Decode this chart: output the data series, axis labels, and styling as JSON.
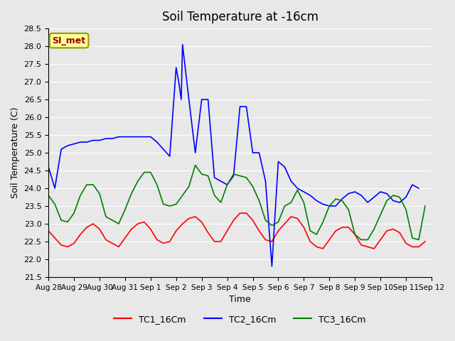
{
  "title": "Soil Temperature at -16cm",
  "xlabel": "Time",
  "ylabel": "Soil Temperature (C)",
  "ylim": [
    21.5,
    28.5
  ],
  "background_color": "#e8e8e8",
  "annotation_text": "SI_met",
  "annotation_bg": "#ffff99",
  "annotation_border": "#999900",
  "annotation_text_color": "#990000",
  "xtick_labels": [
    "Aug 28",
    "Aug 29",
    "Aug 30",
    "Aug 31",
    "Sep 1",
    "Sep 2",
    "Sep 3",
    "Sep 4",
    "Sep 5",
    "Sep 6",
    "Sep 7",
    "Sep 8",
    "Sep 9",
    "Sep 10",
    "Sep 11",
    "Sep 12"
  ],
  "xtick_positions": [
    0,
    1,
    2,
    3,
    4,
    5,
    6,
    7,
    8,
    9,
    10,
    11,
    12,
    13,
    14,
    15
  ],
  "ytick_values": [
    21.5,
    22.0,
    22.5,
    23.0,
    23.5,
    24.0,
    24.5,
    25.0,
    25.5,
    26.0,
    26.5,
    27.0,
    27.5,
    28.0,
    28.5
  ],
  "series": {
    "TC1_16Cm": {
      "color": "red",
      "x": [
        0,
        0.25,
        0.5,
        0.75,
        1.0,
        1.25,
        1.5,
        1.75,
        2.0,
        2.25,
        2.5,
        2.75,
        3.0,
        3.25,
        3.5,
        3.75,
        4.0,
        4.25,
        4.5,
        4.75,
        5.0,
        5.25,
        5.5,
        5.75,
        6.0,
        6.25,
        6.5,
        6.75,
        7.0,
        7.25,
        7.5,
        7.75,
        8.0,
        8.25,
        8.5,
        8.75,
        9.0,
        9.25,
        9.5,
        9.75,
        10.0,
        10.25,
        10.5,
        10.75,
        11.0,
        11.25,
        11.5,
        11.75,
        12.0,
        12.25,
        12.5,
        12.75,
        13.0,
        13.25,
        13.5,
        13.75,
        14.0,
        14.25,
        14.5,
        14.75
      ],
      "y": [
        22.8,
        22.6,
        22.4,
        22.35,
        22.45,
        22.7,
        22.9,
        23.0,
        22.85,
        22.55,
        22.45,
        22.35,
        22.6,
        22.85,
        23.0,
        23.05,
        22.85,
        22.55,
        22.45,
        22.5,
        22.8,
        23.0,
        23.15,
        23.2,
        23.05,
        22.75,
        22.5,
        22.5,
        22.8,
        23.1,
        23.3,
        23.3,
        23.1,
        22.8,
        22.55,
        22.5,
        22.8,
        23.0,
        23.2,
        23.15,
        22.9,
        22.5,
        22.35,
        22.3,
        22.55,
        22.8,
        22.9,
        22.9,
        22.7,
        22.4,
        22.35,
        22.3,
        22.55,
        22.8,
        22.85,
        22.75,
        22.45,
        22.35,
        22.35,
        22.5
      ]
    },
    "TC2_16Cm": {
      "color": "blue",
      "x": [
        0,
        0.25,
        0.5,
        0.75,
        1.0,
        1.25,
        1.5,
        1.75,
        2.0,
        2.25,
        2.5,
        2.75,
        3.0,
        3.25,
        3.5,
        3.75,
        4.0,
        4.25,
        4.5,
        4.75,
        5.0,
        5.1,
        5.2,
        5.25,
        5.5,
        5.75,
        6.0,
        6.25,
        6.5,
        6.75,
        7.0,
        7.25,
        7.5,
        7.75,
        8.0,
        8.25,
        8.5,
        8.75,
        9.0,
        9.25,
        9.5,
        9.75,
        10.0,
        10.25,
        10.5,
        10.75,
        11.0,
        11.25,
        11.5,
        11.75,
        12.0,
        12.25,
        12.5,
        12.75,
        13.0,
        13.25,
        13.5,
        13.75,
        14.0,
        14.25,
        14.5
      ],
      "y": [
        24.6,
        24.0,
        25.1,
        25.2,
        25.25,
        25.3,
        25.3,
        25.35,
        25.35,
        25.4,
        25.4,
        25.45,
        25.45,
        25.45,
        25.45,
        25.45,
        25.45,
        25.3,
        25.1,
        24.9,
        27.4,
        27.0,
        26.5,
        28.05,
        26.5,
        25.0,
        26.5,
        26.5,
        24.3,
        24.2,
        24.1,
        24.35,
        26.3,
        26.3,
        25.0,
        25.0,
        24.2,
        21.8,
        24.75,
        24.6,
        24.2,
        24.0,
        23.9,
        23.8,
        23.65,
        23.55,
        23.5,
        23.5,
        23.7,
        23.85,
        23.9,
        23.8,
        23.6,
        23.75,
        23.9,
        23.85,
        23.65,
        23.6,
        23.75,
        24.1,
        24.0
      ]
    },
    "TC3_16Cm": {
      "color": "green",
      "x": [
        0,
        0.25,
        0.5,
        0.75,
        1.0,
        1.25,
        1.5,
        1.75,
        2.0,
        2.25,
        2.5,
        2.75,
        3.0,
        3.25,
        3.5,
        3.75,
        4.0,
        4.25,
        4.5,
        4.75,
        5.0,
        5.25,
        5.5,
        5.75,
        6.0,
        6.25,
        6.5,
        6.75,
        7.0,
        7.25,
        7.5,
        7.75,
        8.0,
        8.25,
        8.5,
        8.75,
        9.0,
        9.25,
        9.5,
        9.75,
        10.0,
        10.25,
        10.5,
        10.75,
        11.0,
        11.25,
        11.5,
        11.75,
        12.0,
        12.25,
        12.5,
        12.75,
        13.0,
        13.25,
        13.5,
        13.75,
        14.0,
        14.25,
        14.5,
        14.75
      ],
      "y": [
        23.8,
        23.55,
        23.1,
        23.05,
        23.3,
        23.8,
        24.1,
        24.1,
        23.85,
        23.2,
        23.1,
        23.0,
        23.4,
        23.85,
        24.2,
        24.45,
        24.45,
        24.1,
        23.55,
        23.5,
        23.55,
        23.8,
        24.05,
        24.65,
        24.4,
        24.35,
        23.8,
        23.6,
        24.1,
        24.4,
        24.35,
        24.3,
        24.05,
        23.65,
        23.1,
        22.95,
        23.05,
        23.5,
        23.6,
        23.95,
        23.6,
        22.8,
        22.7,
        23.05,
        23.5,
        23.7,
        23.65,
        23.4,
        22.7,
        22.55,
        22.55,
        22.85,
        23.25,
        23.65,
        23.8,
        23.75,
        23.4,
        22.6,
        22.55,
        23.5
      ]
    }
  },
  "legend_entries": [
    "TC1_16Cm",
    "TC2_16Cm",
    "TC3_16Cm"
  ],
  "legend_colors": [
    "red",
    "blue",
    "green"
  ]
}
